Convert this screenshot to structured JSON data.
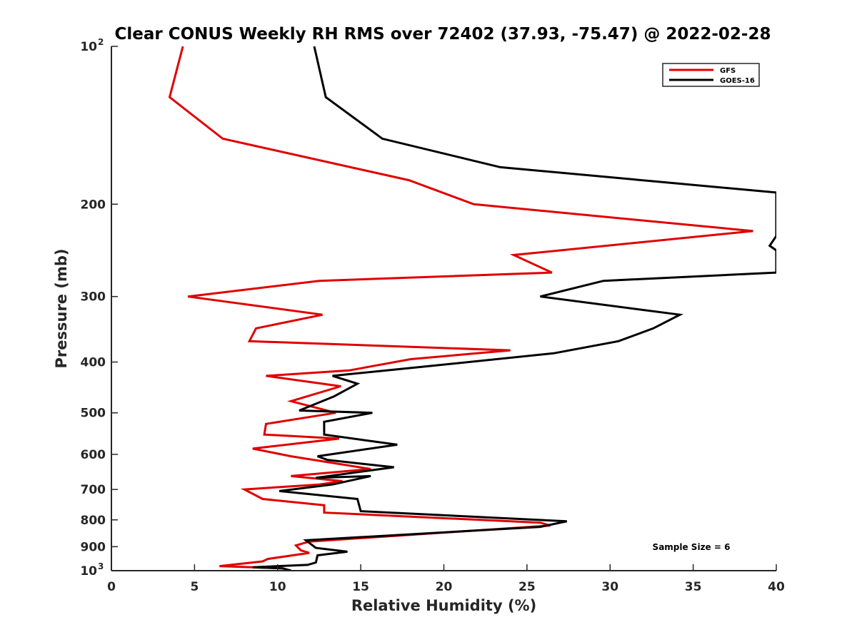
{
  "chart_data": {
    "type": "line",
    "title": "Clear CONUS Weekly RH RMS over 72402 (37.93, -75.47) @ 2022-02-28",
    "xlabel": "Relative Humidity (%)",
    "ylabel": "Pressure (mb)",
    "xlim": [
      0,
      40
    ],
    "ylim": [
      100,
      1000
    ],
    "y_scale": "log",
    "y_reversed": true,
    "x_ticks": [
      0,
      5,
      10,
      15,
      20,
      25,
      30,
      35,
      40
    ],
    "x_tick_labels": [
      "0",
      "5",
      "10",
      "15",
      "20",
      "25",
      "30",
      "35",
      "40"
    ],
    "y_ticks": [
      100,
      200,
      300,
      400,
      500,
      600,
      700,
      800,
      900,
      1000
    ],
    "y_tick_labels": [
      {
        "base": "10",
        "exp": "2"
      },
      {
        "text": "200"
      },
      {
        "text": "300"
      },
      {
        "text": "400"
      },
      {
        "text": "500"
      },
      {
        "text": "600"
      },
      {
        "text": "700"
      },
      {
        "text": "800"
      },
      {
        "text": "900"
      },
      {
        "base": "10",
        "exp": "3"
      }
    ],
    "legend_position": "top-right",
    "annotation": "Sample Size = 6",
    "series": [
      {
        "name": "GFS",
        "color": "#e00000",
        "points": [
          [
            4.3,
            100
          ],
          [
            3.5,
            125
          ],
          [
            6.7,
            150
          ],
          [
            17.9,
            180
          ],
          [
            21.8,
            200
          ],
          [
            38.6,
            225
          ],
          [
            24.2,
            250
          ],
          [
            26.5,
            270
          ],
          [
            12.5,
            280
          ],
          [
            4.6,
            300
          ],
          [
            12.7,
            325
          ],
          [
            8.7,
            345
          ],
          [
            8.3,
            365
          ],
          [
            24.0,
            380
          ],
          [
            18.0,
            395
          ],
          [
            14.3,
            415
          ],
          [
            9.3,
            425
          ],
          [
            13.8,
            445
          ],
          [
            10.8,
            475
          ],
          [
            13.5,
            500
          ],
          [
            9.3,
            525
          ],
          [
            9.2,
            550
          ],
          [
            13.7,
            560
          ],
          [
            8.5,
            585
          ],
          [
            10.8,
            605
          ],
          [
            15.6,
            640
          ],
          [
            10.8,
            660
          ],
          [
            13.9,
            675
          ],
          [
            12.5,
            685
          ],
          [
            8.0,
            700
          ],
          [
            9.1,
            730
          ],
          [
            12.8,
            750
          ],
          [
            12.8,
            775
          ],
          [
            25.8,
            810
          ],
          [
            26.4,
            820
          ],
          [
            11.9,
            880
          ],
          [
            11.1,
            895
          ],
          [
            11.4,
            915
          ],
          [
            11.9,
            925
          ],
          [
            9.4,
            950
          ],
          [
            9.1,
            960
          ],
          [
            6.5,
            980
          ],
          [
            10.3,
            990
          ],
          [
            10.8,
            1000
          ]
        ]
      },
      {
        "name": "GOES-16",
        "color": "#000000",
        "points": [
          [
            12.2,
            100
          ],
          [
            12.9,
            125
          ],
          [
            16.3,
            150
          ],
          [
            23.4,
            170
          ],
          [
            40.0,
            190
          ],
          [
            40.0,
            230
          ],
          [
            39.6,
            240
          ],
          [
            40.0,
            245
          ],
          [
            40.0,
            270
          ],
          [
            29.6,
            280
          ],
          [
            25.8,
            300
          ],
          [
            34.2,
            325
          ],
          [
            32.6,
            345
          ],
          [
            30.5,
            365
          ],
          [
            26.6,
            385
          ],
          [
            18.2,
            410
          ],
          [
            13.3,
            425
          ],
          [
            14.8,
            440
          ],
          [
            13.4,
            465
          ],
          [
            11.3,
            495
          ],
          [
            15.7,
            500
          ],
          [
            12.8,
            520
          ],
          [
            12.8,
            550
          ],
          [
            17.2,
            575
          ],
          [
            12.4,
            605
          ],
          [
            13.0,
            615
          ],
          [
            17.0,
            635
          ],
          [
            12.3,
            665
          ],
          [
            15.6,
            660
          ],
          [
            13.3,
            685
          ],
          [
            10.1,
            705
          ],
          [
            14.8,
            730
          ],
          [
            15.0,
            770
          ],
          [
            27.4,
            805
          ],
          [
            25.8,
            825
          ],
          [
            11.7,
            875
          ],
          [
            12.3,
            905
          ],
          [
            14.2,
            920
          ],
          [
            12.4,
            935
          ],
          [
            12.3,
            965
          ],
          [
            11.8,
            975
          ],
          [
            8.5,
            985
          ],
          [
            10.3,
            990
          ],
          [
            10.8,
            1000
          ]
        ]
      }
    ]
  }
}
